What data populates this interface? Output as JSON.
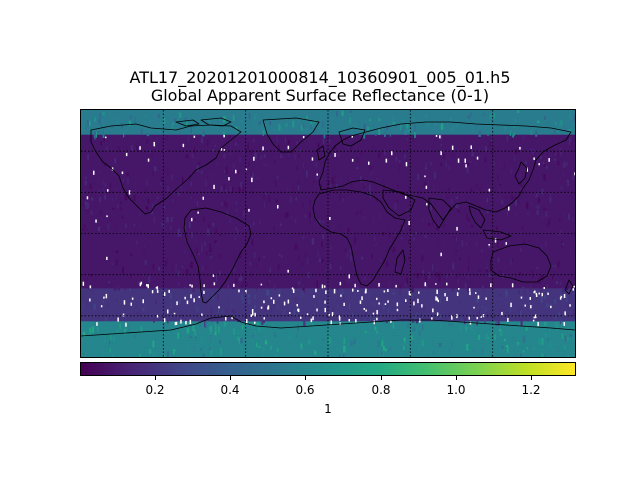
{
  "figure": {
    "title_line1": "ATL17_20201201000814_10360901_005_01.h5",
    "title_line2": "Global Apparent Surface Reflectance (0-1)"
  },
  "colorbar": {
    "colormap": "viridis",
    "min": 0.0,
    "max": 1.32,
    "ticks": [
      0.2,
      0.4,
      0.6,
      0.8,
      1.0,
      1.2
    ],
    "tick_labels": [
      "0.2",
      "0.4",
      "0.6",
      "0.8",
      "1.0",
      "1.2"
    ],
    "unit_label": "1",
    "colors": [
      "#440154",
      "#482475",
      "#414487",
      "#355f8d",
      "#2a788e",
      "#21918c",
      "#22a884",
      "#44bf70",
      "#7ad151",
      "#bddf26",
      "#fde725"
    ]
  },
  "map": {
    "projection": "plate-carree",
    "extent": {
      "lon": [
        -180,
        180
      ],
      "lat": [
        -90,
        90
      ]
    },
    "gridlines": {
      "lons": [
        -120,
        -60,
        0,
        60,
        120
      ],
      "lats": [
        -60,
        -30,
        0,
        30,
        60
      ],
      "style": "dotted"
    },
    "coastlines": true,
    "reflectance_summary": [
      {
        "region": "arctic-ocean-sea-ice",
        "lat_range": [
          72,
          90
        ],
        "typical_value": 0.55
      },
      {
        "region": "antarctic-ice",
        "lat_range": [
          -90,
          -64
        ],
        "typical_value": 0.6
      },
      {
        "region": "southern-ocean",
        "lat_range": [
          -64,
          -40
        ],
        "typical_value": 0.2
      },
      {
        "region": "open-ocean",
        "lat_range": [
          -40,
          72
        ],
        "typical_value": 0.08
      },
      {
        "region": "land",
        "lat_range": [
          -56,
          72
        ],
        "typical_value": 0.15
      }
    ]
  }
}
